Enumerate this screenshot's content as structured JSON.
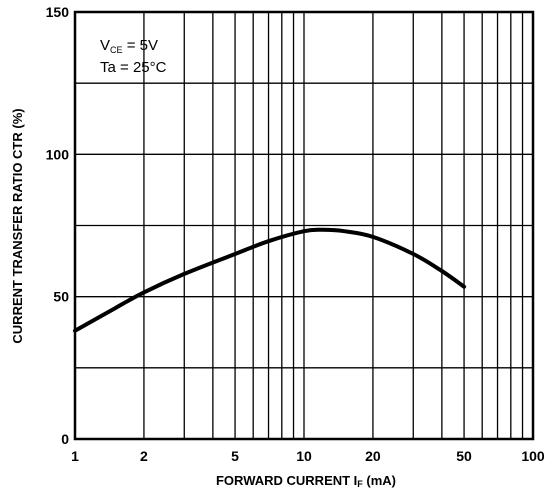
{
  "chart_data": {
    "type": "line",
    "xscale": "log",
    "xlim": [
      1,
      100
    ],
    "ylim": [
      0,
      150
    ],
    "xticks": [
      1,
      2,
      5,
      10,
      20,
      50,
      100
    ],
    "xtick_labels": [
      "1",
      "2",
      "5",
      "10",
      "20",
      "50",
      "100"
    ],
    "yticks": [
      0,
      50,
      100,
      150
    ],
    "ytick_labels": [
      "0",
      "50",
      "100",
      "150"
    ],
    "x_minor_gridlines": [
      3,
      4,
      6,
      7,
      8,
      9,
      30,
      40,
      60,
      70,
      80,
      90
    ],
    "y_gridlines": [
      0,
      25,
      50,
      75,
      100,
      125,
      150
    ],
    "grid": true,
    "xlabel": {
      "main": "FORWARD CURRENT I",
      "sub": "F",
      "unit": " (mA)"
    },
    "ylabel": "CURRENT TRANSFER RATIO CTR (%)",
    "conditions": [
      {
        "main": "V",
        "sub": "CE",
        "rest": " = 5V"
      },
      {
        "main": "Ta",
        "sub": "",
        "rest": " = 25°C"
      }
    ],
    "series": [
      {
        "x": [
          1,
          1.5,
          2,
          3,
          5,
          7,
          10,
          12,
          15,
          20,
          30,
          40,
          50
        ],
        "y": [
          38,
          46,
          51.5,
          58,
          65,
          69.5,
          73,
          73.5,
          73,
          71,
          65,
          59,
          53.5
        ]
      }
    ],
    "line_color": "#000000"
  }
}
